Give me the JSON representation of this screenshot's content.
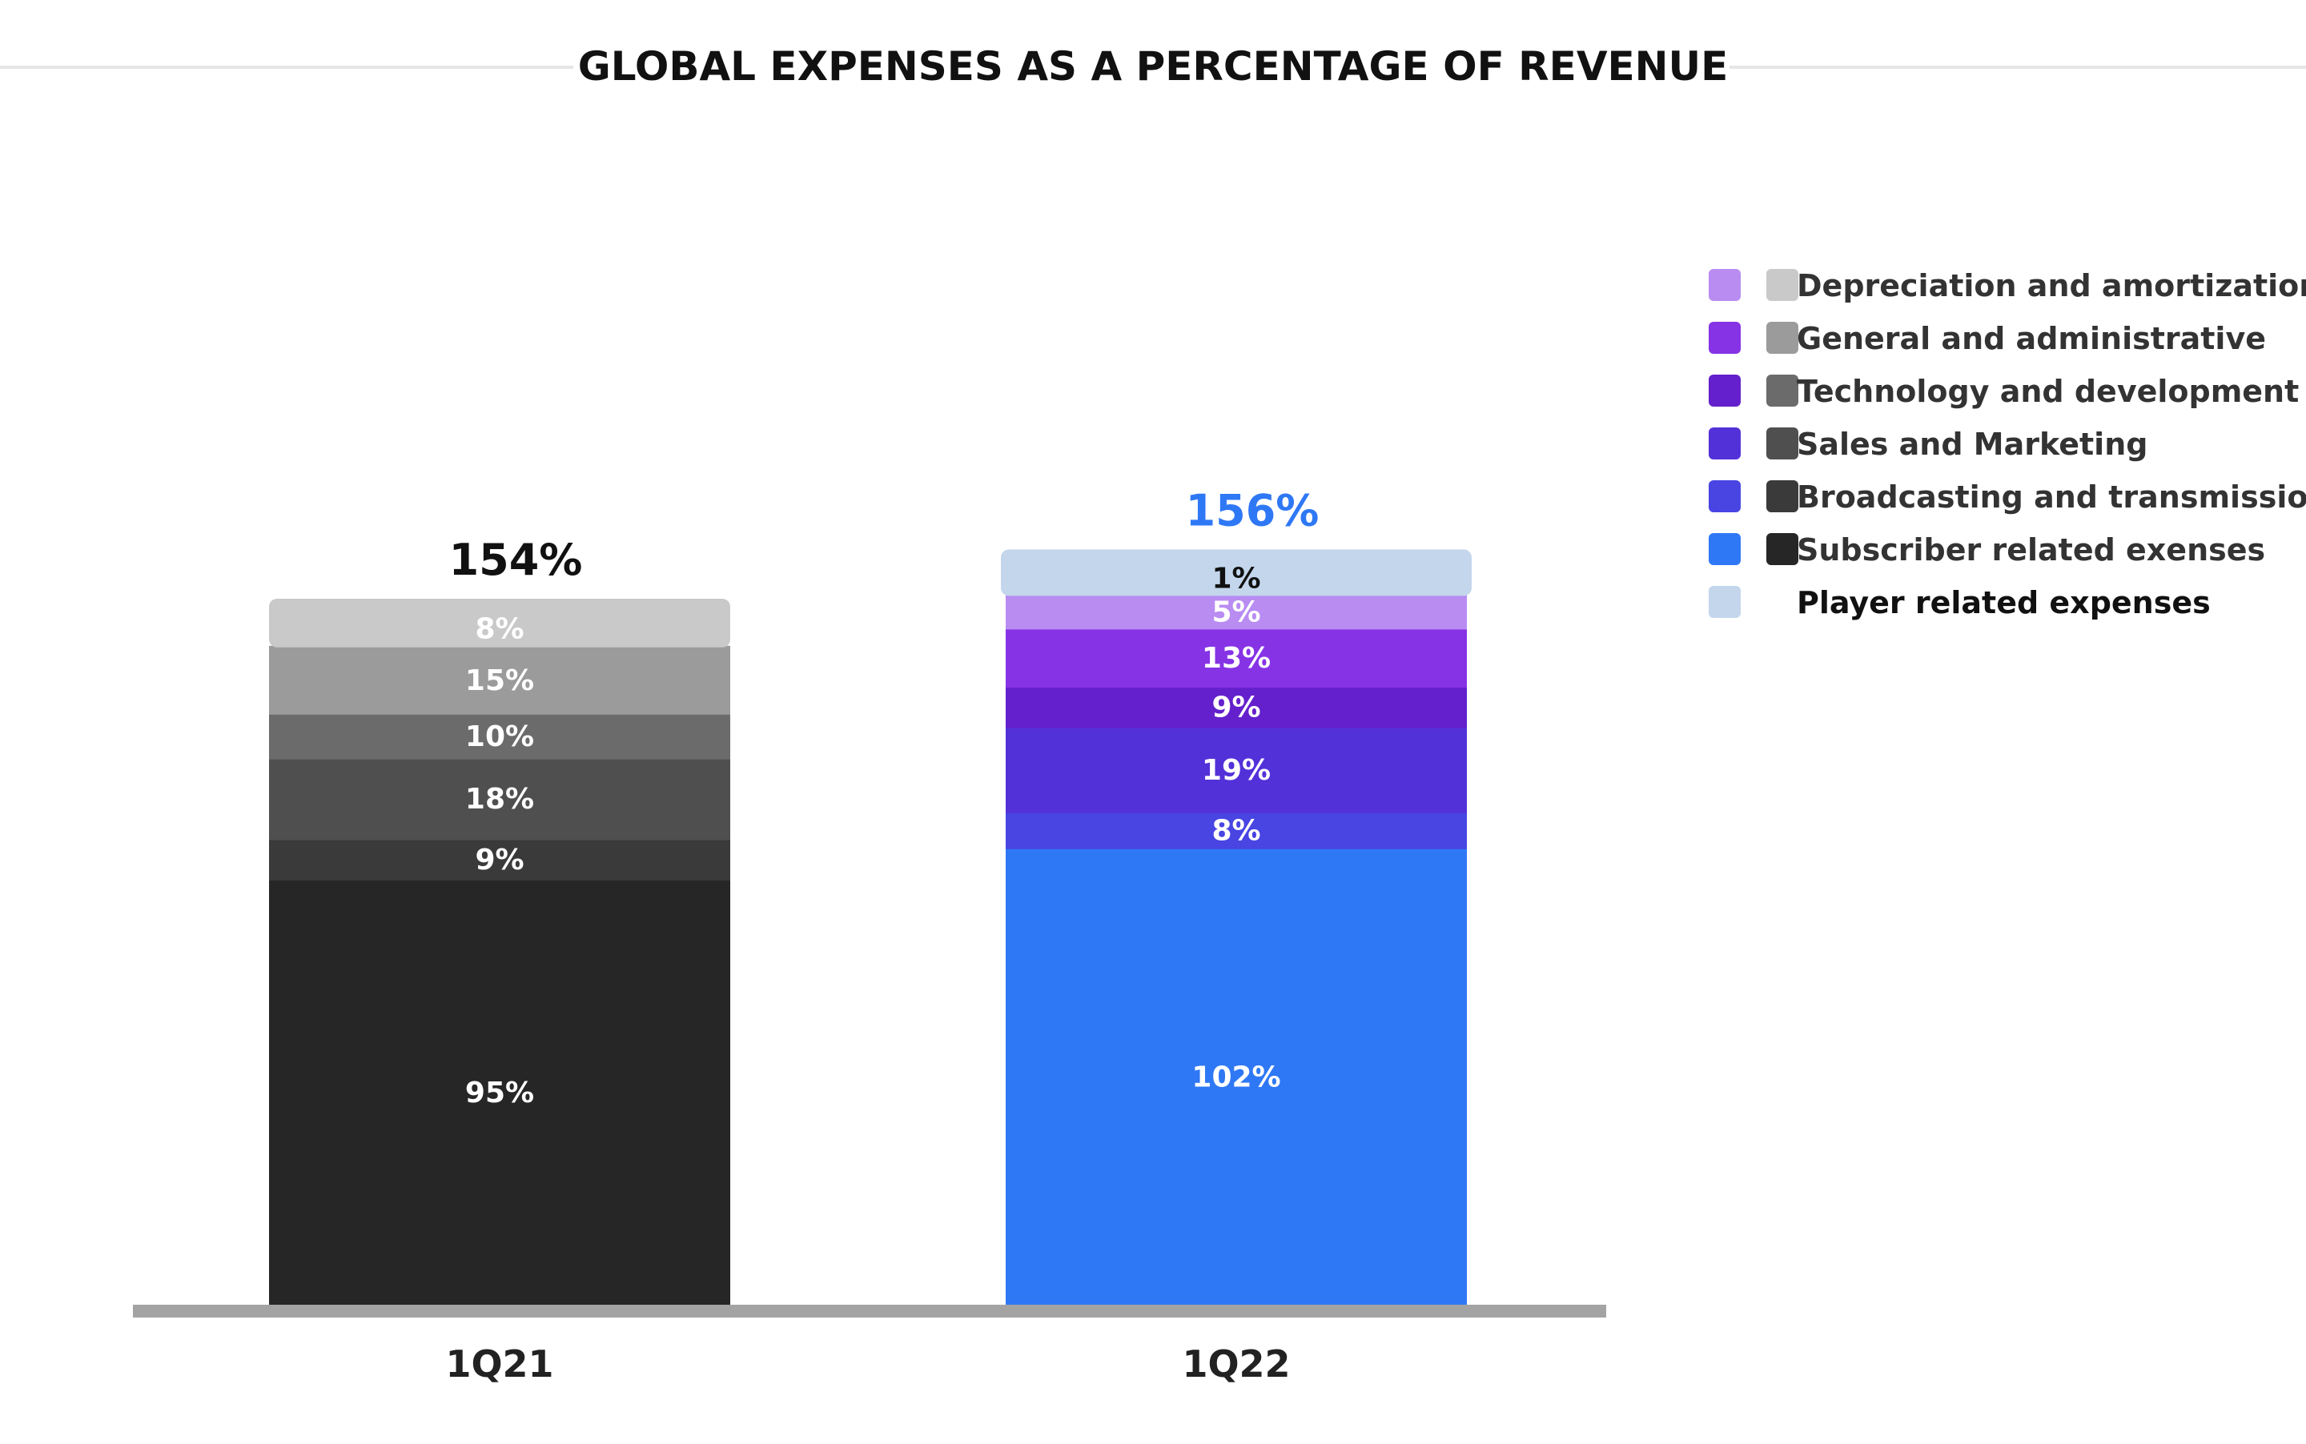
{
  "chart_data": {
    "type": "bar",
    "stacked": true,
    "title": "GLOBAL EXPENSES AS A PERCENTAGE OF REVENUE",
    "categories": [
      "1Q21",
      "1Q22"
    ],
    "totals": [
      {
        "label": "154%",
        "color": "#111111"
      },
      {
        "label": "156%",
        "color": "#2f78f5"
      }
    ],
    "ylim": [
      0,
      160
    ],
    "grid": false,
    "legend_position": "top-right",
    "bars": [
      {
        "category": "1Q21",
        "segments": [
          {
            "key": "subscriber",
            "value": 95,
            "label": "95%",
            "color": "#262626",
            "text_color": "#ffffff"
          },
          {
            "key": "broadcasting",
            "value": 9,
            "label": "9%",
            "color": "#3a3a3a",
            "text_color": "#ffffff"
          },
          {
            "key": "sales",
            "value": 18,
            "label": "18%",
            "color": "#4f4f4f",
            "text_color": "#ffffff"
          },
          {
            "key": "technology",
            "value": 10,
            "label": "10%",
            "color": "#6b6b6b",
            "text_color": "#ffffff"
          },
          {
            "key": "general",
            "value": 15,
            "label": "15%",
            "color": "#9b9b9b",
            "text_color": "#ffffff"
          },
          {
            "key": "depreciation",
            "value": 8,
            "label": "8%",
            "color": "#c9c9c9",
            "text_color": "#ffffff"
          }
        ]
      },
      {
        "category": "1Q22",
        "segments": [
          {
            "key": "subscriber",
            "value": 102,
            "label": "102%",
            "color": "#2f78f5",
            "text_color": "#ffffff"
          },
          {
            "key": "broadcasting",
            "value": 8,
            "label": "8%",
            "color": "#4845e3",
            "text_color": "#ffffff"
          },
          {
            "key": "sales",
            "value": 19,
            "label": "19%",
            "color": "#5331d9",
            "text_color": "#ffffff"
          },
          {
            "key": "technology",
            "value": 9,
            "label": "9%",
            "color": "#6420cc",
            "text_color": "#ffffff"
          },
          {
            "key": "general",
            "value": 13,
            "label": "13%",
            "color": "#8633e6",
            "text_color": "#ffffff"
          },
          {
            "key": "depreciation",
            "value": 5,
            "label": "5%",
            "color": "#b98cf2",
            "text_color": "#ffffff"
          },
          {
            "key": "player",
            "value": 1,
            "label": "1%",
            "color": "#c3d6ec",
            "text_color": "#111111"
          }
        ]
      }
    ],
    "legend": [
      {
        "label": "Depreciation and amortization",
        "color_1q22": "#b98cf2",
        "color_1q21": "#c9c9c9"
      },
      {
        "label": "General and administrative",
        "color_1q22": "#8633e6",
        "color_1q21": "#9b9b9b"
      },
      {
        "label": "Technology and development",
        "color_1q22": "#6420cc",
        "color_1q21": "#6b6b6b"
      },
      {
        "label": "Sales and Marketing",
        "color_1q22": "#5331d9",
        "color_1q21": "#4f4f4f"
      },
      {
        "label": "Broadcasting and transmission",
        "color_1q22": "#4845e3",
        "color_1q21": "#3a3a3a"
      },
      {
        "label": "Subscriber related exenses",
        "color_1q22": "#2f78f5",
        "color_1q21": "#262626"
      },
      {
        "label": "Player related expenses",
        "color_1q22": "#c3d6ec",
        "color_1q21": null
      }
    ]
  }
}
